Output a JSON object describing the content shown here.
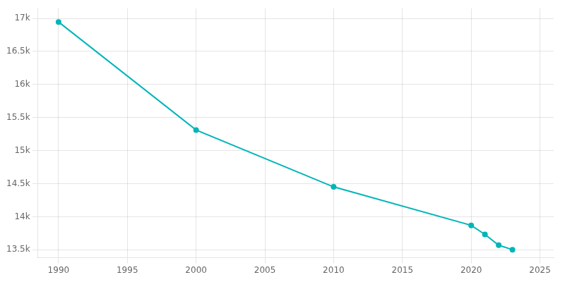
{
  "chart_data": {
    "type": "line",
    "x": [
      1990,
      2000,
      2010,
      2020,
      2021,
      2022,
      2023
    ],
    "values": [
      16946,
      15312,
      14452,
      13870,
      13733,
      13570,
      13502
    ],
    "color": "#00b5b8",
    "marker": "circle",
    "xlim": [
      1988.5,
      2026
    ],
    "xticks": [
      1990,
      1995,
      2000,
      2005,
      2010,
      2015,
      2020,
      2025
    ],
    "ylim": [
      13380,
      17150
    ],
    "yticks": [
      {
        "value": 13500,
        "label": "13.5k"
      },
      {
        "value": 14000,
        "label": "14k"
      },
      {
        "value": 14500,
        "label": "14.5k"
      },
      {
        "value": 15000,
        "label": "15k"
      },
      {
        "value": 15500,
        "label": "15.5k"
      },
      {
        "value": 16000,
        "label": "16k"
      },
      {
        "value": 16500,
        "label": "16.5k"
      },
      {
        "value": 17000,
        "label": "17k"
      }
    ],
    "grid": true
  }
}
